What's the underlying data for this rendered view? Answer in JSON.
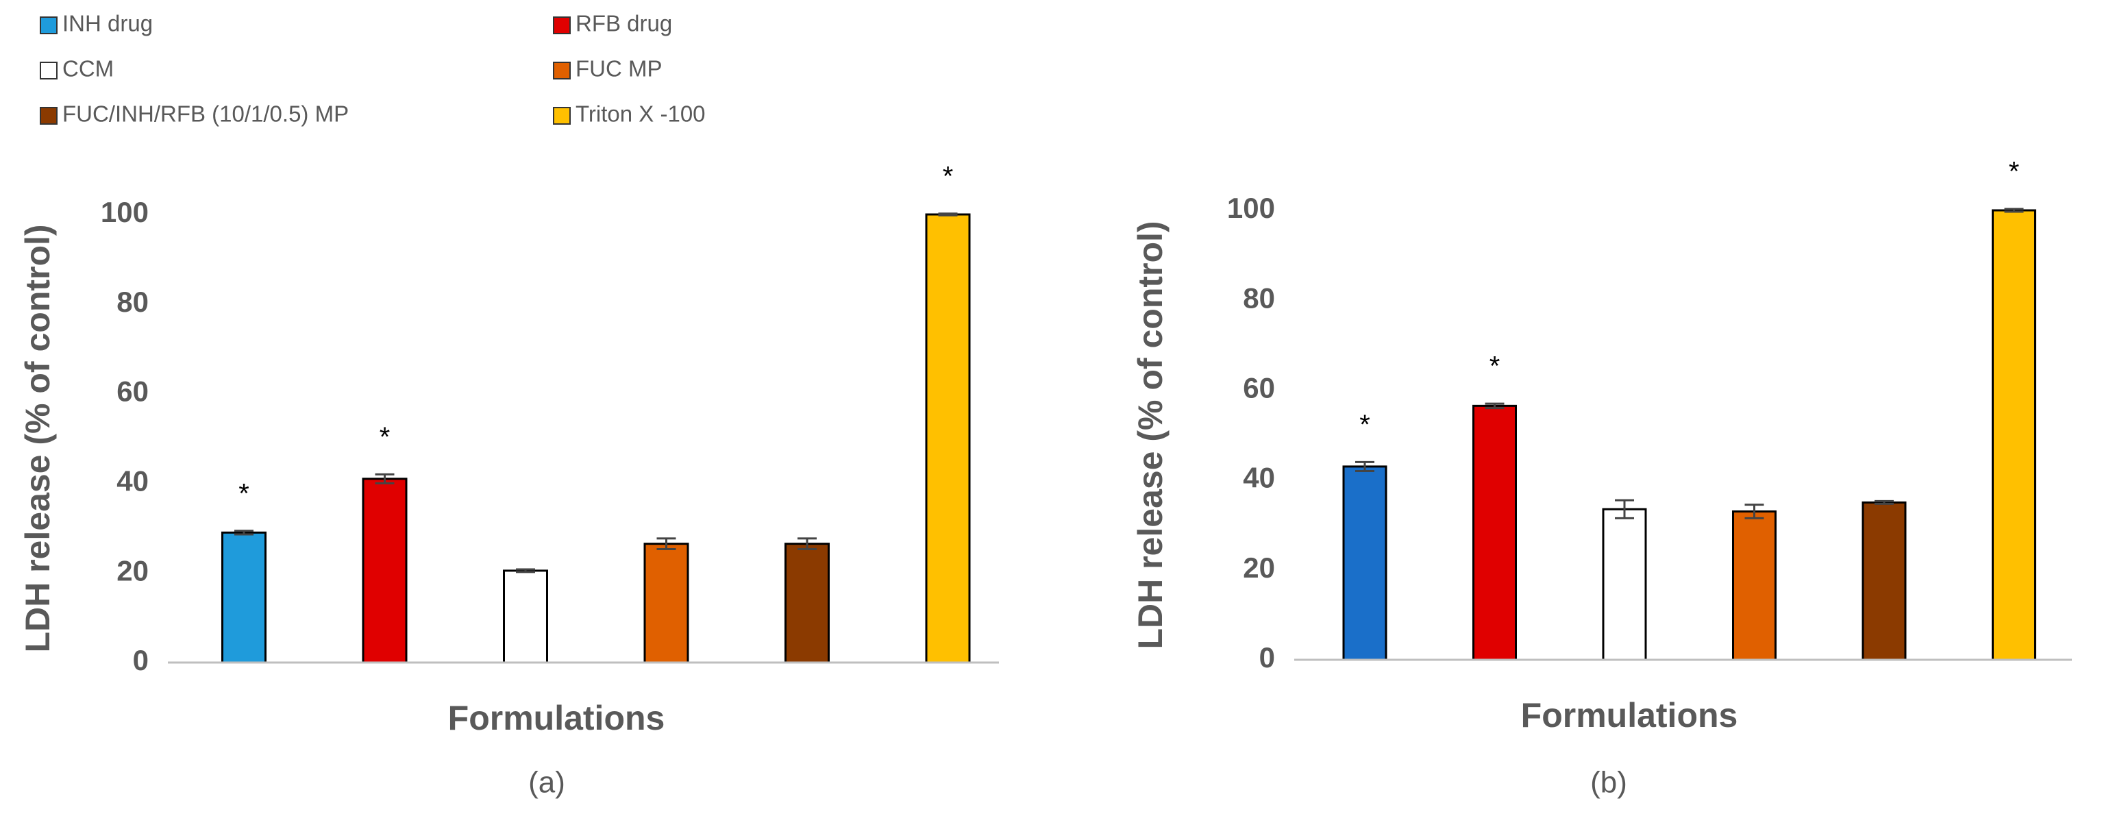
{
  "chart_data": [
    {
      "type": "bar",
      "categories": [
        "INH drug",
        "RFB drug",
        "CCM",
        "FUC MP",
        "FUC/INH/RFB (10/1/0.5) MP",
        "Triton X -100"
      ],
      "values": [
        29,
        41,
        20.5,
        26.5,
        26.5,
        100
      ],
      "errors": [
        0.4,
        1,
        0.3,
        1.2,
        1.2,
        0.2
      ],
      "colors": [
        "#1f9bdb",
        "#e00000",
        "#ffffff",
        "#e06000",
        "#8b3a00",
        "#ffc000"
      ],
      "annotations": [
        "*",
        "*",
        null,
        null,
        null,
        "*"
      ],
      "ylabel": "LDH release (% of  control)",
      "xlabel": "Formulations",
      "caption": "(a)",
      "ylim": [
        0,
        100
      ],
      "yticks": [
        0,
        20,
        40,
        60,
        80,
        100
      ]
    },
    {
      "type": "bar",
      "values": [
        43,
        56.5,
        33.5,
        33,
        35,
        100
      ],
      "errors": [
        1,
        0.5,
        2,
        1.5,
        0.3,
        0.3
      ],
      "colors": [
        "#1a6fc9",
        "#e00000",
        "#ffffff",
        "#e06000",
        "#8b3a00",
        "#ffc000"
      ],
      "annotations": [
        "*",
        "*",
        null,
        null,
        null,
        "*"
      ],
      "ylabel": "LDH release (% of control)",
      "xlabel": "Formulations",
      "caption": "(b)",
      "ylim": [
        0,
        100
      ],
      "yticks": [
        0,
        20,
        40,
        60,
        80,
        100
      ]
    }
  ]
}
